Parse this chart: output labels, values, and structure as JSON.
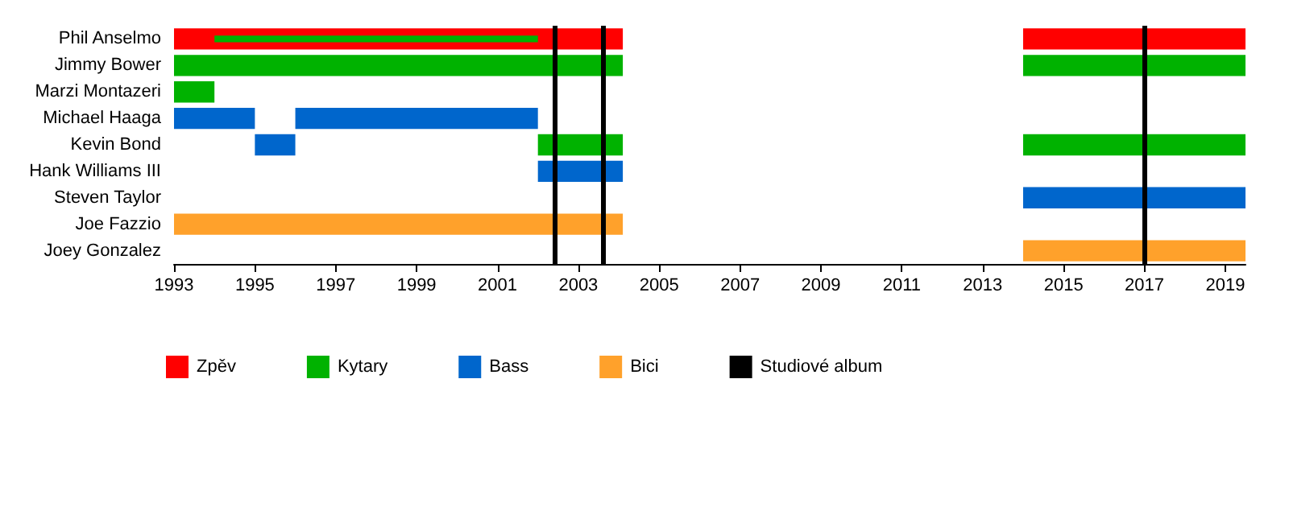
{
  "chart_data": {
    "type": "bar",
    "orientation": "horizontal",
    "categories": [
      "Phil Anselmo",
      "Jimmy Bower",
      "Marzi Montazeri",
      "Michael Haaga",
      "Kevin Bond",
      "Hank Williams III",
      "Steven Taylor",
      "Joe Fazzio",
      "Joey Gonzalez"
    ],
    "series": [
      {
        "name": "Zpěv",
        "color": "#ff0000",
        "base": [
          1993,
          null,
          null,
          null,
          null,
          null,
          null,
          null,
          null
        ],
        "values": [
          11.1,
          null,
          null,
          null,
          null,
          null,
          null,
          null,
          null
        ]
      },
      {
        "color": "#ff0000",
        "base": [
          2014,
          null,
          null,
          null,
          null,
          null,
          null,
          null,
          null
        ],
        "values": [
          5.5,
          null,
          null,
          null,
          null,
          null,
          null,
          null,
          null
        ]
      },
      {
        "name": "Kytary",
        "color": "#00b200",
        "base": [
          null,
          1993,
          1993,
          null,
          2002,
          null,
          null,
          null,
          null
        ],
        "values": [
          null,
          11.1,
          1,
          null,
          2.1,
          null,
          null,
          null,
          null
        ]
      },
      {
        "color": "#00b200",
        "base": [
          null,
          2014,
          null,
          null,
          2014,
          null,
          null,
          null,
          null
        ],
        "values": [
          null,
          5.5,
          null,
          null,
          5.5,
          null,
          null,
          null,
          null
        ]
      },
      {
        "color": "#00b200",
        "base": [
          1994,
          null,
          null,
          null,
          null,
          null,
          null,
          null,
          null
        ],
        "values": [
          8,
          null,
          null,
          null,
          null,
          null,
          null,
          null,
          null
        ]
      },
      {
        "name": "Bass",
        "color": "#0066cc",
        "base": [
          null,
          null,
          null,
          1993,
          1995,
          2002,
          null,
          null,
          null
        ],
        "values": [
          null,
          null,
          null,
          2,
          1,
          2.1,
          null,
          null,
          null
        ]
      },
      {
        "color": "#0066cc",
        "base": [
          null,
          null,
          null,
          1996,
          null,
          null,
          2014,
          null,
          null
        ],
        "values": [
          null,
          null,
          null,
          6,
          null,
          null,
          5.5,
          null,
          null
        ]
      },
      {
        "name": "Bici",
        "color": "#ffa12b",
        "base": [
          null,
          null,
          null,
          null,
          null,
          null,
          null,
          1993,
          null
        ],
        "values": [
          null,
          null,
          null,
          null,
          null,
          null,
          null,
          11.1,
          null
        ]
      },
      {
        "color": "#ffa12b",
        "base": [
          null,
          null,
          null,
          null,
          null,
          null,
          null,
          null,
          2014
        ],
        "values": [
          null,
          null,
          null,
          null,
          null,
          null,
          null,
          null,
          5.5
        ]
      }
    ],
    "ref_lines": [
      {
        "axis": "x",
        "value": 2002.4,
        "label": "Studiové album",
        "color": "#000000"
      },
      {
        "axis": "x",
        "value": 2003.6,
        "color": "#000000"
      },
      {
        "axis": "x",
        "value": 2017,
        "color": "#000000"
      }
    ],
    "xlim": [
      1993,
      2019.5
    ],
    "xticks": [
      1993,
      1995,
      1997,
      1999,
      2001,
      2003,
      2005,
      2007,
      2009,
      2011,
      2013,
      2015,
      2017,
      2019
    ],
    "grid": false,
    "legend": "bottom left"
  }
}
